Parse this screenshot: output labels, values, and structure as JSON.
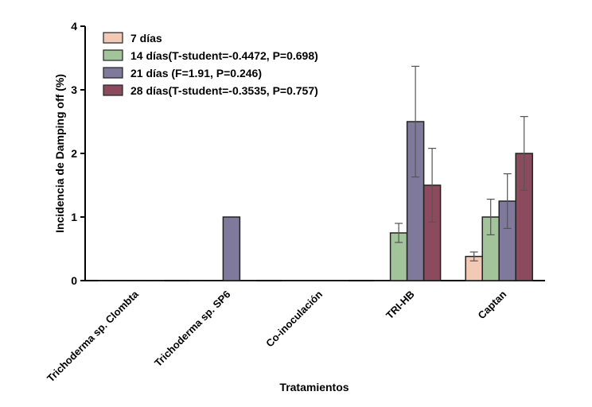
{
  "chart_data": {
    "type": "bar",
    "xlabel": "Tratamientos",
    "ylabel": "Incidencia de Damping off (%)",
    "ylim": [
      0,
      4
    ],
    "yticks": [
      "0",
      "1",
      "2",
      "3",
      "4"
    ],
    "grid": false,
    "legend_position": "top-left",
    "categories": [
      "Trichoderma sp. Clombta",
      "Trichoderma sp. SP6",
      "Co-inoculación",
      "TRI-HB",
      "Captan"
    ],
    "series": [
      {
        "name": "7 días",
        "color": "#f2c9b4",
        "values": [
          0,
          0,
          0,
          0,
          0.38
        ],
        "errors": [
          0,
          0,
          0,
          0,
          0.07
        ]
      },
      {
        "name": "14 días(T-student=-0.4472, P=0.698)",
        "color": "#a3c49a",
        "values": [
          0,
          0,
          0,
          0.75,
          1.0
        ],
        "errors": [
          0,
          0,
          0,
          0.15,
          0.28
        ]
      },
      {
        "name": "21 días (F=1.91, P=0.246)",
        "color": "#7f7a9c",
        "values": [
          0,
          1.0,
          0,
          2.5,
          1.25
        ],
        "errors": [
          0,
          0,
          0,
          0.87,
          0.43
        ]
      },
      {
        "name": "28 días(T-student=-0.3535, P=0.757)",
        "color": "#8c4a5e",
        "values": [
          0,
          0,
          0,
          1.5,
          2.0
        ],
        "errors": [
          0,
          0,
          0,
          0.58,
          0.58
        ]
      }
    ]
  }
}
